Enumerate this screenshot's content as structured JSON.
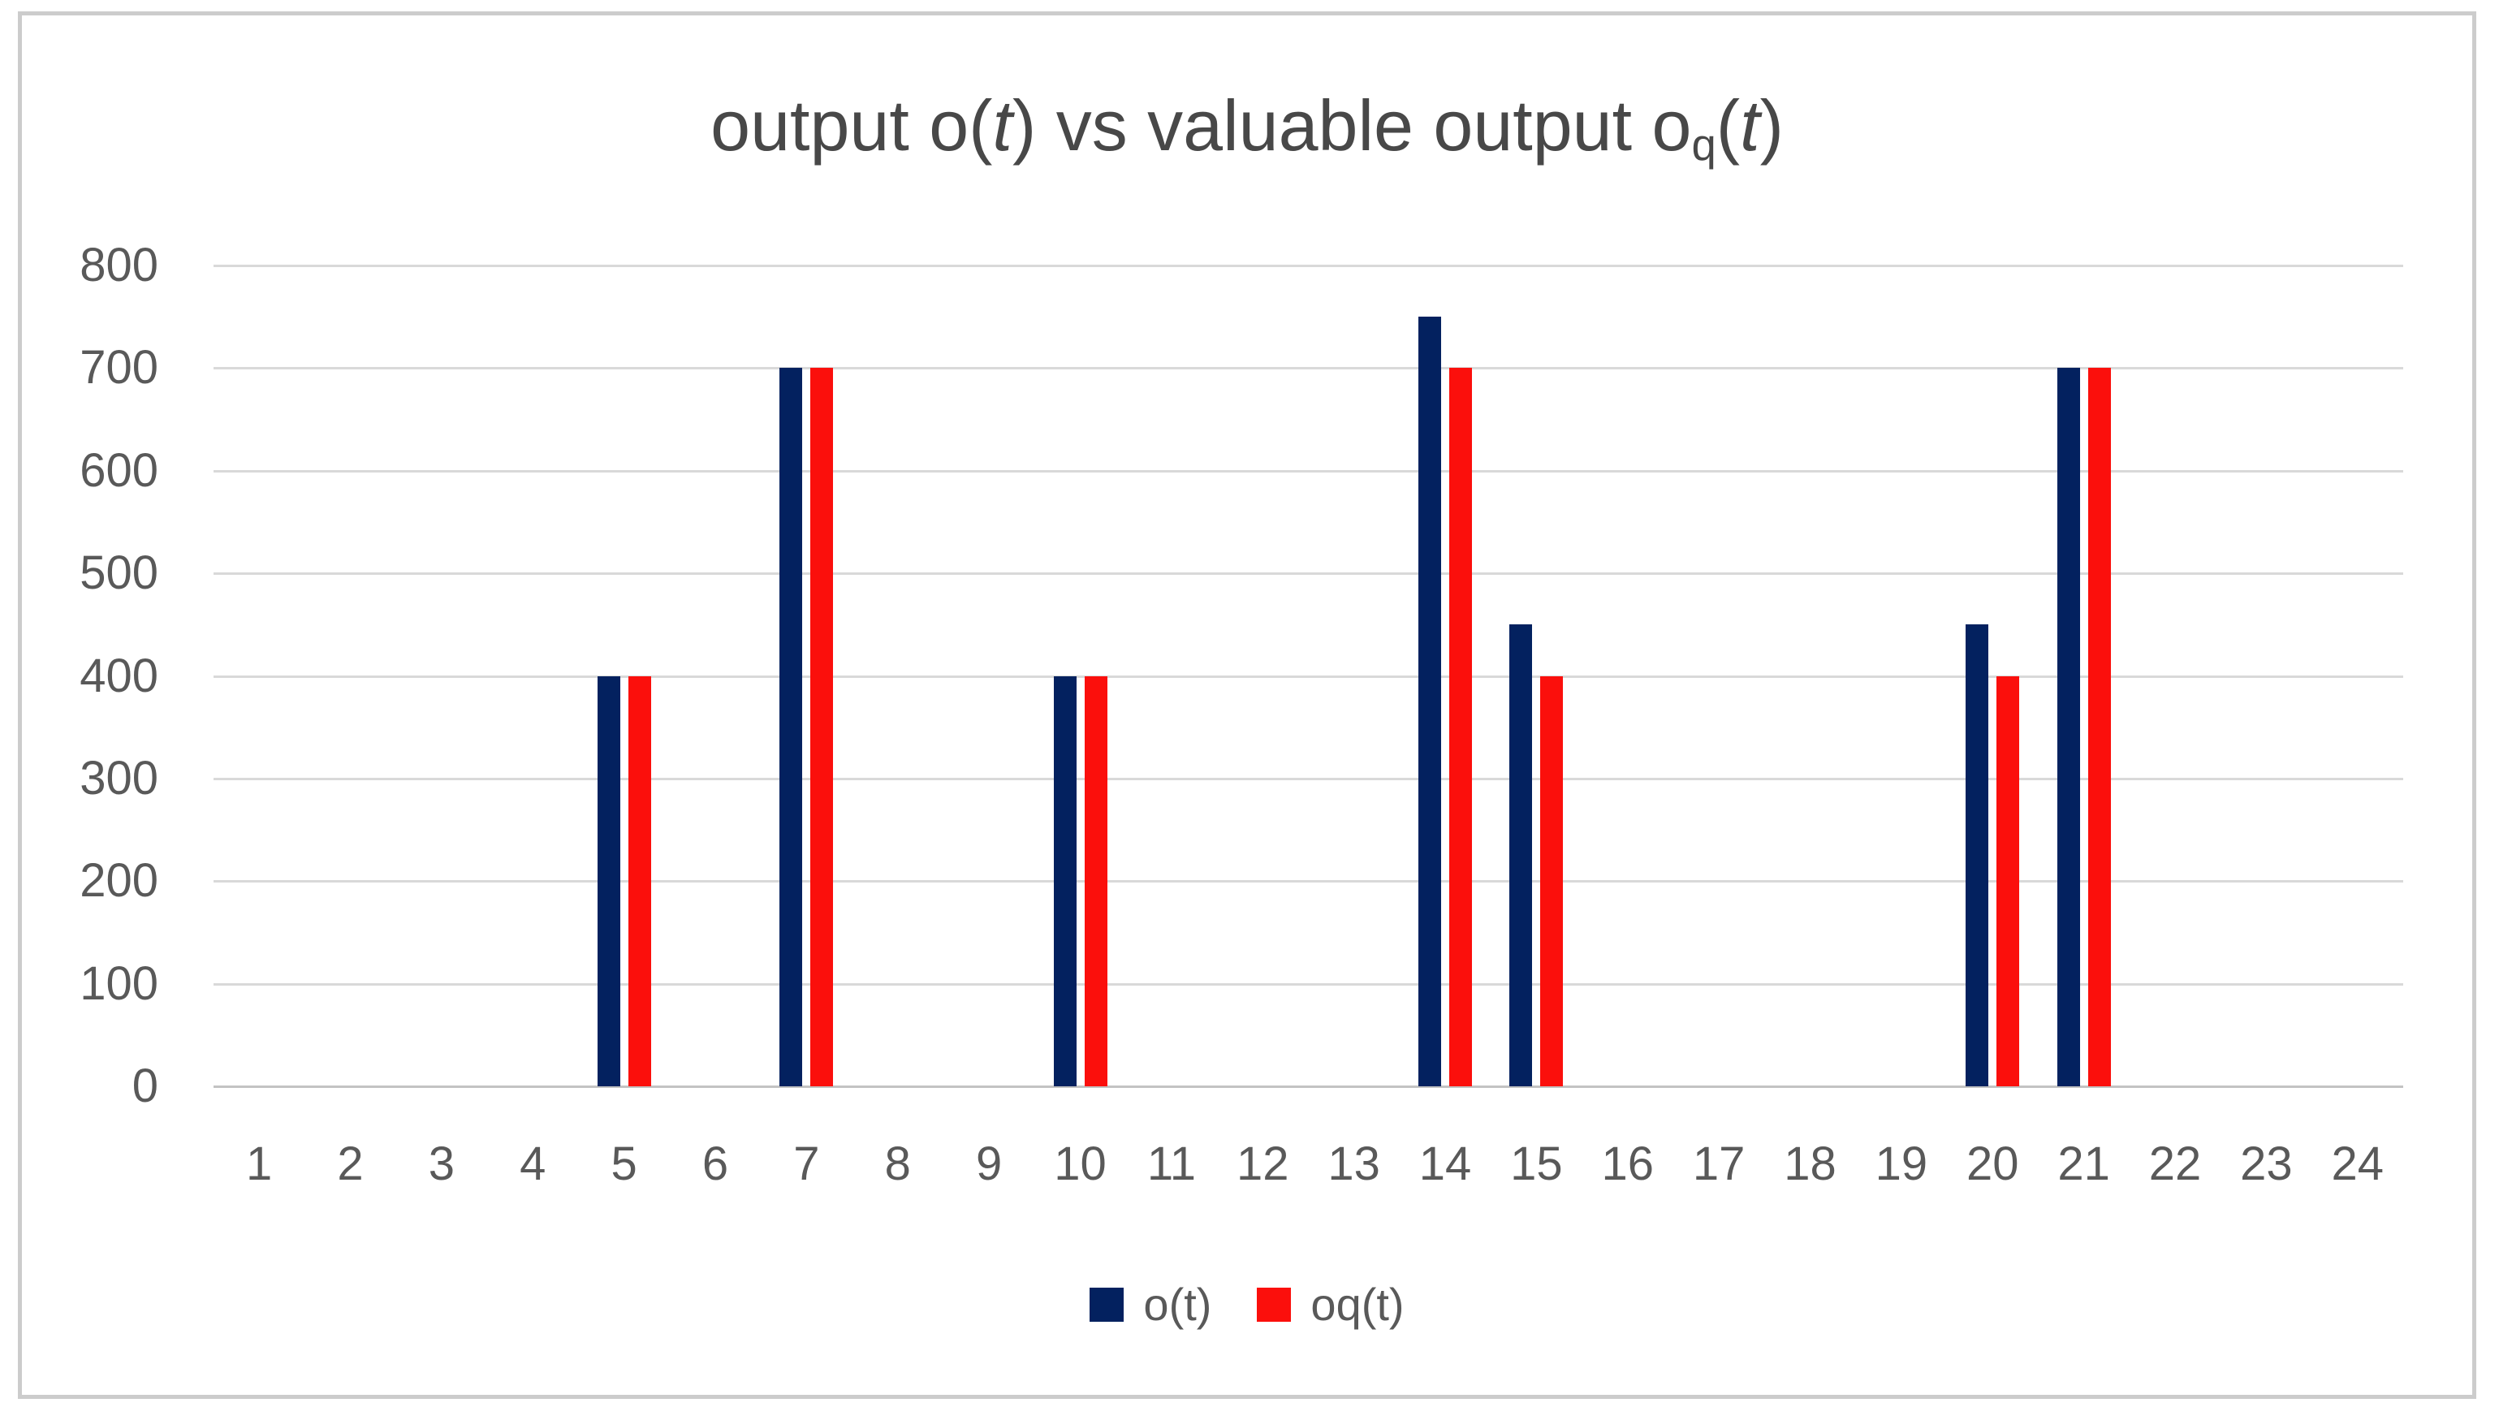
{
  "title": {
    "text": "output o(t) vs valuable output oq(t)",
    "segments": [
      {
        "text": "output o(",
        "style": "normal"
      },
      {
        "text": "t",
        "style": "italic"
      },
      {
        "text": ") vs valuable output o",
        "style": "normal"
      },
      {
        "text": "q",
        "style": "subscript"
      },
      {
        "text": "(",
        "style": "normal"
      },
      {
        "text": "t",
        "style": "italic"
      },
      {
        "text": ")",
        "style": "normal"
      }
    ]
  },
  "chart_data": {
    "type": "bar",
    "title": "output o(t) vs valuable output oq(t)",
    "categories": [
      "1",
      "2",
      "3",
      "4",
      "5",
      "6",
      "7",
      "8",
      "9",
      "10",
      "11",
      "12",
      "13",
      "14",
      "15",
      "16",
      "17",
      "18",
      "19",
      "20",
      "21",
      "22",
      "23",
      "24"
    ],
    "series": [
      {
        "name": "o(t)",
        "color": "#03215F",
        "values": [
          0,
          0,
          0,
          0,
          400,
          0,
          700,
          0,
          0,
          400,
          0,
          0,
          0,
          750,
          450,
          0,
          0,
          0,
          0,
          450,
          700,
          0,
          0,
          0
        ]
      },
      {
        "name": "oq(t)",
        "color": "#FB0F0C",
        "values": [
          0,
          0,
          0,
          0,
          400,
          0,
          700,
          0,
          0,
          400,
          0,
          0,
          0,
          700,
          400,
          0,
          0,
          0,
          0,
          400,
          700,
          0,
          0,
          0
        ]
      }
    ],
    "ylim": [
      0,
      800
    ],
    "yticks": [
      800,
      700,
      600,
      500,
      400,
      300,
      200,
      100,
      0
    ],
    "xlabel": "",
    "ylabel": "",
    "grid": true,
    "legend_position": "bottom"
  },
  "colors": {
    "axis_text": "#595959",
    "title_text": "#484848",
    "gridline": "#D9D9D9",
    "axis_line": "#C3C3C3",
    "frame_border": "#CCCCCC",
    "background": "#FFFFFF"
  }
}
